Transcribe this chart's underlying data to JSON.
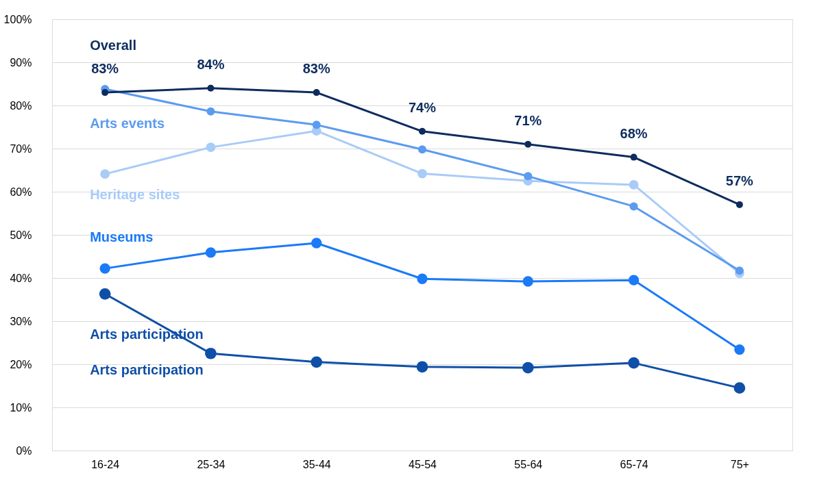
{
  "chart_data": {
    "type": "line",
    "categories": [
      "16-24",
      "25-34",
      "35-44",
      "45-54",
      "55-64",
      "65-74",
      "75+"
    ],
    "ylim": [
      0,
      100
    ],
    "yticks": [
      {
        "value": 0,
        "label": "0%"
      },
      {
        "value": 10,
        "label": "10%"
      },
      {
        "value": 20,
        "label": "20%"
      },
      {
        "value": 30,
        "label": "30%"
      },
      {
        "value": 40,
        "label": "40%"
      },
      {
        "value": 50,
        "label": "50%"
      },
      {
        "value": 60,
        "label": "60%"
      },
      {
        "value": 70,
        "label": "70%"
      },
      {
        "value": 80,
        "label": "80%"
      },
      {
        "value": 90,
        "label": "90%"
      },
      {
        "value": 100,
        "label": "100%"
      }
    ],
    "grid": "y",
    "legend": false,
    "marker": "circle",
    "line_style": "solid",
    "series": [
      {
        "name": "Arts participation",
        "color": "#0f4fa8",
        "values": [
          36.3,
          22.5,
          20.5,
          19.4,
          19.2,
          20.3,
          14.5
        ]
      },
      {
        "name": "Museums",
        "color": "#1a7af8",
        "values": [
          42.2,
          45.9,
          48.1,
          39.8,
          39.2,
          39.5,
          23.4
        ]
      },
      {
        "name": "Heritage  sites",
        "color": "#a9cbf7",
        "values": [
          64.1,
          70.3,
          74.1,
          64.2,
          62.5,
          61.6,
          41.1
        ]
      },
      {
        "name": "Arts events",
        "color": "#5b9bf0",
        "values": [
          83.8,
          78.6,
          75.5,
          69.8,
          63.6,
          56.6,
          41.7
        ]
      },
      {
        "name": "Overall",
        "color": "#0d2c5e",
        "values": [
          83,
          84,
          83,
          74,
          71,
          68,
          57
        ],
        "value_labels": [
          "83%",
          "84%",
          "83%",
          "74%",
          "71%",
          "68%",
          "57%"
        ]
      }
    ],
    "annotations": [
      "Arts participation"
    ]
  }
}
